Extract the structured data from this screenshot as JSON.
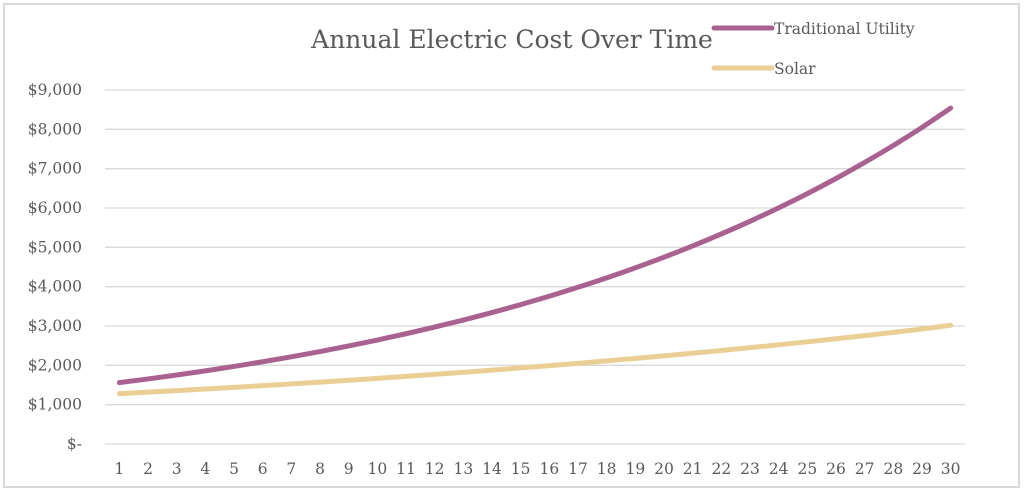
{
  "chart_data": {
    "type": "line",
    "title": "Annual Electric Cost Over Time",
    "xlabel": "",
    "ylabel": "",
    "x": [
      1,
      2,
      3,
      4,
      5,
      6,
      7,
      8,
      9,
      10,
      11,
      12,
      13,
      14,
      15,
      16,
      17,
      18,
      19,
      20,
      21,
      22,
      23,
      24,
      25,
      26,
      27,
      28,
      29,
      30
    ],
    "ylim": [
      0,
      9000
    ],
    "y_ticks": [
      0,
      1000,
      2000,
      3000,
      4000,
      5000,
      6000,
      7000,
      8000,
      9000
    ],
    "y_tick_labels": [
      "$-",
      "$1,000",
      "$2,000",
      "$3,000",
      "$4,000",
      "$5,000",
      "$6,000",
      "$7,000",
      "$8,000",
      "$9,000"
    ],
    "grid": true,
    "legend_position": "top-right",
    "series": [
      {
        "name": "Traditional Utility",
        "color": "#a9628f",
        "values": [
          1560,
          1654,
          1754,
          1860,
          1972,
          2091,
          2217,
          2351,
          2493,
          2643,
          2803,
          2972,
          3151,
          3341,
          3543,
          3757,
          3984,
          4224,
          4479,
          4749,
          5036,
          5340,
          5662,
          6004,
          6366,
          6750,
          7158,
          7590,
          8048,
          8540
        ]
      },
      {
        "name": "Solar",
        "color": "#ebce94",
        "values": [
          1280,
          1318,
          1357,
          1398,
          1440,
          1483,
          1527,
          1573,
          1620,
          1668,
          1718,
          1770,
          1823,
          1877,
          1934,
          1992,
          2051,
          2113,
          2176,
          2241,
          2309,
          2378,
          2449,
          2522,
          2598,
          2676,
          2756,
          2839,
          2924,
          3020
        ]
      }
    ]
  }
}
